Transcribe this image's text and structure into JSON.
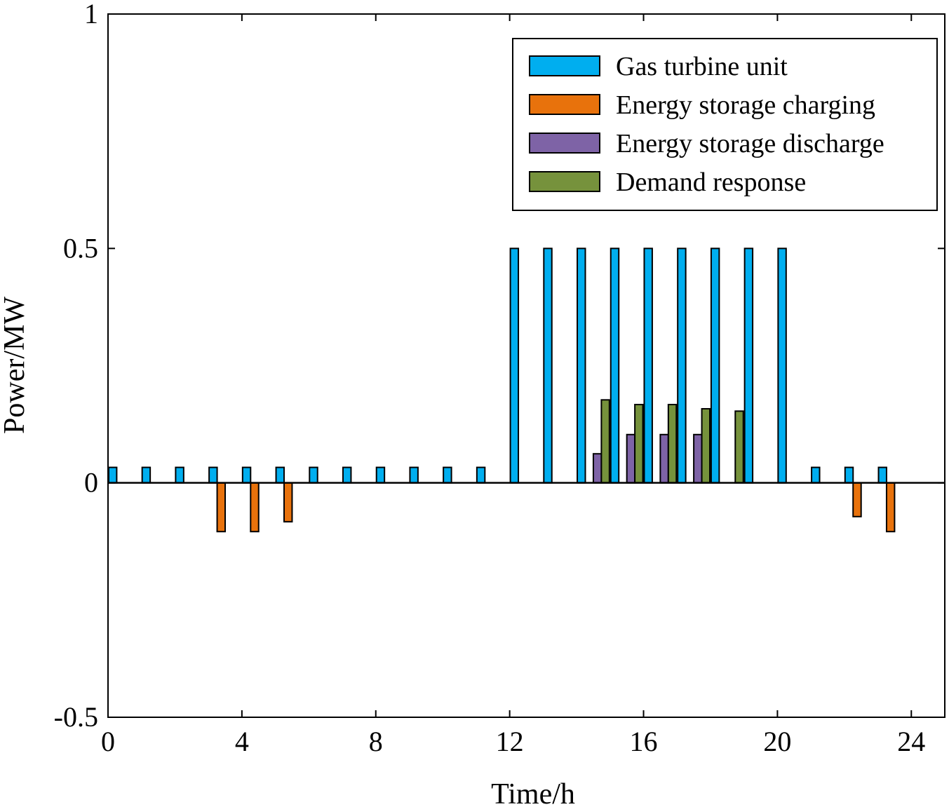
{
  "chart_data": {
    "type": "bar",
    "title": "",
    "xlabel": "Time/h",
    "ylabel": "Power/MW",
    "xlim": [
      0,
      25
    ],
    "ylim": [
      -0.5,
      1
    ],
    "xticks": [
      0,
      4,
      8,
      12,
      16,
      20,
      24
    ],
    "xtick_labels": [
      "0",
      "4",
      "8",
      "12",
      "16",
      "20",
      "24"
    ],
    "yticks": [
      -0.5,
      0,
      0.5,
      1
    ],
    "ytick_labels": [
      "-0.5",
      "0",
      "0.5",
      "1"
    ],
    "grid": false,
    "legend_position": "top-right",
    "hours": [
      1,
      2,
      3,
      4,
      5,
      6,
      7,
      8,
      9,
      10,
      11,
      12,
      13,
      14,
      15,
      16,
      17,
      18,
      19,
      20,
      21,
      22,
      23,
      24
    ],
    "series": [
      {
        "name": "Gas turbine unit",
        "color": "#00AEEF",
        "values": [
          0.033,
          0.033,
          0.033,
          0.033,
          0.033,
          0.033,
          0.033,
          0.033,
          0.033,
          0.033,
          0.033,
          0.033,
          0.5,
          0.5,
          0.5,
          0.5,
          0.5,
          0.5,
          0.5,
          0.5,
          0.5,
          0.033,
          0.033,
          0.033
        ]
      },
      {
        "name": "Energy storage charging",
        "color": "#E8720C",
        "values": [
          0,
          0,
          0,
          -0.104,
          -0.104,
          -0.083,
          0,
          0,
          0,
          0,
          0,
          0,
          0,
          0,
          0,
          0,
          0,
          0,
          0,
          0,
          0,
          0,
          -0.072,
          -0.104
        ]
      },
      {
        "name": "Energy storage discharge",
        "color": "#7E63A6",
        "values": [
          0,
          0,
          0,
          0,
          0,
          0,
          0,
          0,
          0,
          0,
          0,
          0,
          0,
          0,
          0.062,
          0.103,
          0.103,
          0.103,
          0,
          0,
          0,
          0,
          0,
          0
        ]
      },
      {
        "name": "Demand response",
        "color": "#76923C",
        "values": [
          0,
          0,
          0,
          0,
          0,
          0,
          0,
          0,
          0,
          0,
          0,
          0,
          0,
          0,
          0.177,
          0.167,
          0.167,
          0.158,
          0.153,
          0,
          0,
          0,
          0,
          0
        ]
      }
    ]
  }
}
